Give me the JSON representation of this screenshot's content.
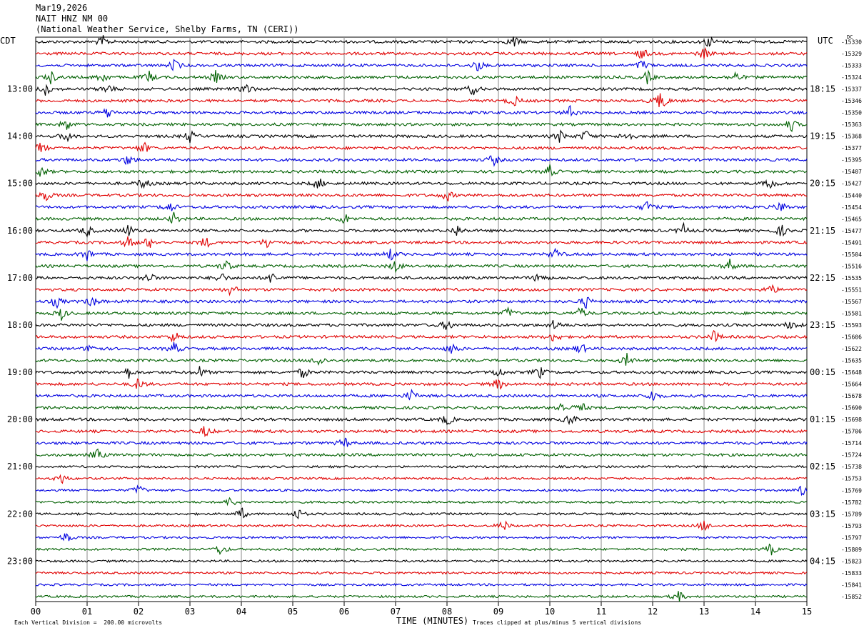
{
  "header": {
    "date": "Mar19,2026",
    "station": "NAIT HNZ NM 00",
    "source": "(National Weather Service, Shelby Farms, TN (CERI))"
  },
  "left_tz": "CDT",
  "right_tz": "UTC",
  "dc_label": "DC",
  "footer": {
    "scale_note": "Each Vertical Division =  200.00 microvolts",
    "xaxis_title": "TIME (MINUTES)",
    "clip_note": "Traces clipped at plus/minus 5 vertical divisions"
  },
  "colors": {
    "trace_cycle": [
      "#000000",
      "#e00000",
      "#0000e0",
      "#006000"
    ],
    "grid": "#888888"
  },
  "chart_data": {
    "type": "line",
    "title": "NAIT HNZ NM 00",
    "xlabel": "TIME (MINUTES)",
    "xlim": [
      0,
      15
    ],
    "x_ticks": [
      "00",
      "01",
      "02",
      "03",
      "04",
      "05",
      "06",
      "07",
      "08",
      "09",
      "10",
      "11",
      "12",
      "13",
      "14",
      "15"
    ],
    "left_hour_labels": [
      "13:00",
      "14:00",
      "15:00",
      "16:00",
      "17:00",
      "18:00",
      "19:00",
      "20:00",
      "21:00",
      "22:00",
      "23:00"
    ],
    "right_hour_labels": [
      "18:15",
      "19:15",
      "20:15",
      "21:15",
      "22:15",
      "23:15",
      "00:15",
      "01:15",
      "02:15",
      "03:15",
      "04:15"
    ],
    "dc_offsets": [
      -15330,
      -15329,
      -15333,
      -15324,
      -15337,
      -15346,
      -15350,
      -15363,
      -15368,
      -15377,
      -15395,
      -15407,
      -15427,
      -15440,
      -15454,
      -15465,
      -15477,
      -15491,
      -15504,
      -15516,
      -15535,
      -15551,
      -15567,
      -15581,
      -15593,
      -15606,
      -15622,
      -15635,
      -15648,
      -15664,
      -15678,
      -15690,
      -15698,
      -15706,
      -15714,
      -15724,
      -15738,
      -15753,
      -15769,
      -15782,
      -15789,
      -15793,
      -15797,
      -15809,
      -15823,
      -15833,
      -15841,
      -15852
    ],
    "trace_count": 48,
    "first_hour_label_trace": 4,
    "traces_per_hour": 4,
    "event_minutes": [
      [
        1.3,
        9.3,
        13.1
      ],
      [
        11.8,
        13.0
      ],
      [
        2.7,
        8.6,
        11.8
      ],
      [
        0.3,
        1.3,
        2.2,
        3.5,
        11.9,
        13.6
      ],
      [
        0.2,
        1.4,
        4.1,
        8.5
      ],
      [
        12.2,
        12.1,
        9.3
      ],
      [
        1.4,
        10.4
      ],
      [
        0.6,
        14.7
      ],
      [
        0.6,
        3.0,
        10.2,
        10.7,
        11.5
      ],
      [
        2.1,
        0.1
      ],
      [
        1.8,
        8.9
      ],
      [
        0.1,
        10.0
      ],
      [
        2.1,
        5.5,
        14.3
      ],
      [
        8.0,
        0.2
      ],
      [
        2.6,
        11.9,
        14.5
      ],
      [
        2.7,
        6.0
      ],
      [
        1.0,
        1.8,
        8.2,
        12.6,
        14.5
      ],
      [
        1.8,
        2.2,
        3.3,
        4.5
      ],
      [
        1.0,
        6.9,
        10.1
      ],
      [
        3.7,
        7.0,
        13.5
      ],
      [
        2.2,
        3.6,
        4.6,
        9.8
      ],
      [
        3.8,
        14.3
      ],
      [
        0.4,
        1.1,
        10.7
      ],
      [
        0.5,
        10.6,
        9.2
      ],
      [
        8.0,
        10.1,
        14.7
      ],
      [
        2.7,
        10.1,
        13.2
      ],
      [
        1.1,
        2.7,
        8.1,
        10.6
      ],
      [
        5.5,
        11.5
      ],
      [
        1.8,
        3.2,
        5.2,
        9.0,
        9.8
      ],
      [
        2.0,
        9.0
      ],
      [
        7.3,
        12.0
      ],
      [
        10.2,
        10.6
      ],
      [
        8.0,
        10.4
      ],
      [
        3.3
      ],
      [
        6.0
      ],
      [
        1.2
      ],
      [],
      [
        0.5
      ],
      [
        2.0,
        14.9
      ],
      [
        3.8
      ],
      [
        4.0,
        5.1
      ],
      [
        9.1,
        13.0
      ],
      [
        0.6
      ],
      [
        3.6,
        14.3
      ],
      [],
      [],
      [],
      [
        12.5
      ]
    ]
  }
}
